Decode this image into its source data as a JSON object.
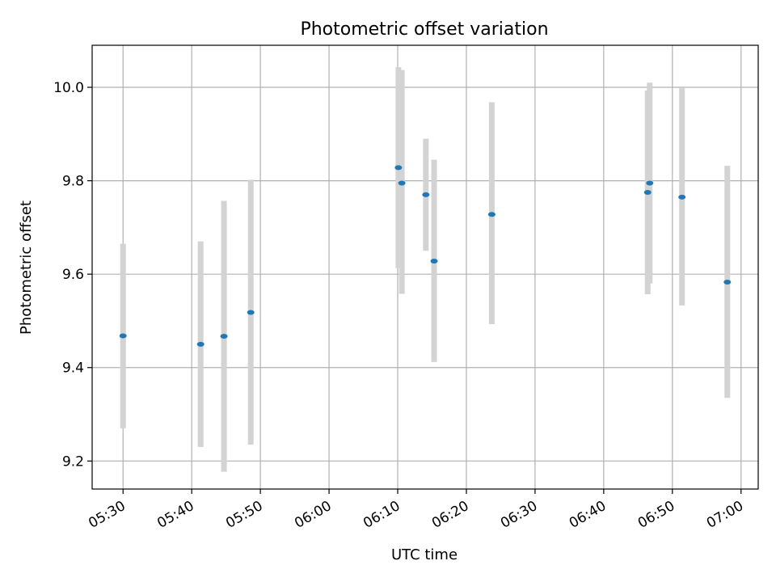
{
  "chart_data": {
    "type": "scatter",
    "title": "Photometric offset variation",
    "xlabel": "UTC time",
    "ylabel": "Photometric offset",
    "xlim": [
      "05:25:30",
      "07:02:30"
    ],
    "ylim": [
      9.14,
      10.09
    ],
    "xticks": [
      "05:30",
      "05:40",
      "05:50",
      "06:00",
      "06:10",
      "06:20",
      "06:30",
      "06:40",
      "06:50",
      "07:00"
    ],
    "yticks": [
      9.2,
      9.4,
      9.6,
      9.8,
      10.0
    ],
    "ytick_labels": [
      "9.2",
      "9.4",
      "9.6",
      "9.8",
      "10.0"
    ],
    "grid": true,
    "point_color": "#1f77b4",
    "errorbar_color": "#d3d3d3",
    "points": [
      {
        "t": "05:30:00",
        "y": 9.468,
        "ylow": 9.27,
        "yhigh": 9.665
      },
      {
        "t": "05:41:18",
        "y": 9.45,
        "ylow": 9.23,
        "yhigh": 9.67
      },
      {
        "t": "05:44:42",
        "y": 9.467,
        "ylow": 9.177,
        "yhigh": 9.757
      },
      {
        "t": "05:48:36",
        "y": 9.518,
        "ylow": 9.235,
        "yhigh": 9.802
      },
      {
        "t": "06:10:06",
        "y": 9.828,
        "ylow": 9.613,
        "yhigh": 10.043
      },
      {
        "t": "06:10:36",
        "y": 9.795,
        "ylow": 9.558,
        "yhigh": 10.037
      },
      {
        "t": "06:14:06",
        "y": 9.77,
        "ylow": 9.65,
        "yhigh": 9.89
      },
      {
        "t": "06:15:18",
        "y": 9.628,
        "ylow": 9.412,
        "yhigh": 9.845
      },
      {
        "t": "06:23:42",
        "y": 9.728,
        "ylow": 9.493,
        "yhigh": 9.968
      },
      {
        "t": "06:46:24",
        "y": 9.775,
        "ylow": 9.557,
        "yhigh": 9.993
      },
      {
        "t": "06:46:42",
        "y": 9.795,
        "ylow": 9.58,
        "yhigh": 10.01
      },
      {
        "t": "06:51:24",
        "y": 9.765,
        "ylow": 9.533,
        "yhigh": 9.998
      },
      {
        "t": "06:58:00",
        "y": 9.583,
        "ylow": 9.335,
        "yhigh": 9.832
      }
    ]
  }
}
